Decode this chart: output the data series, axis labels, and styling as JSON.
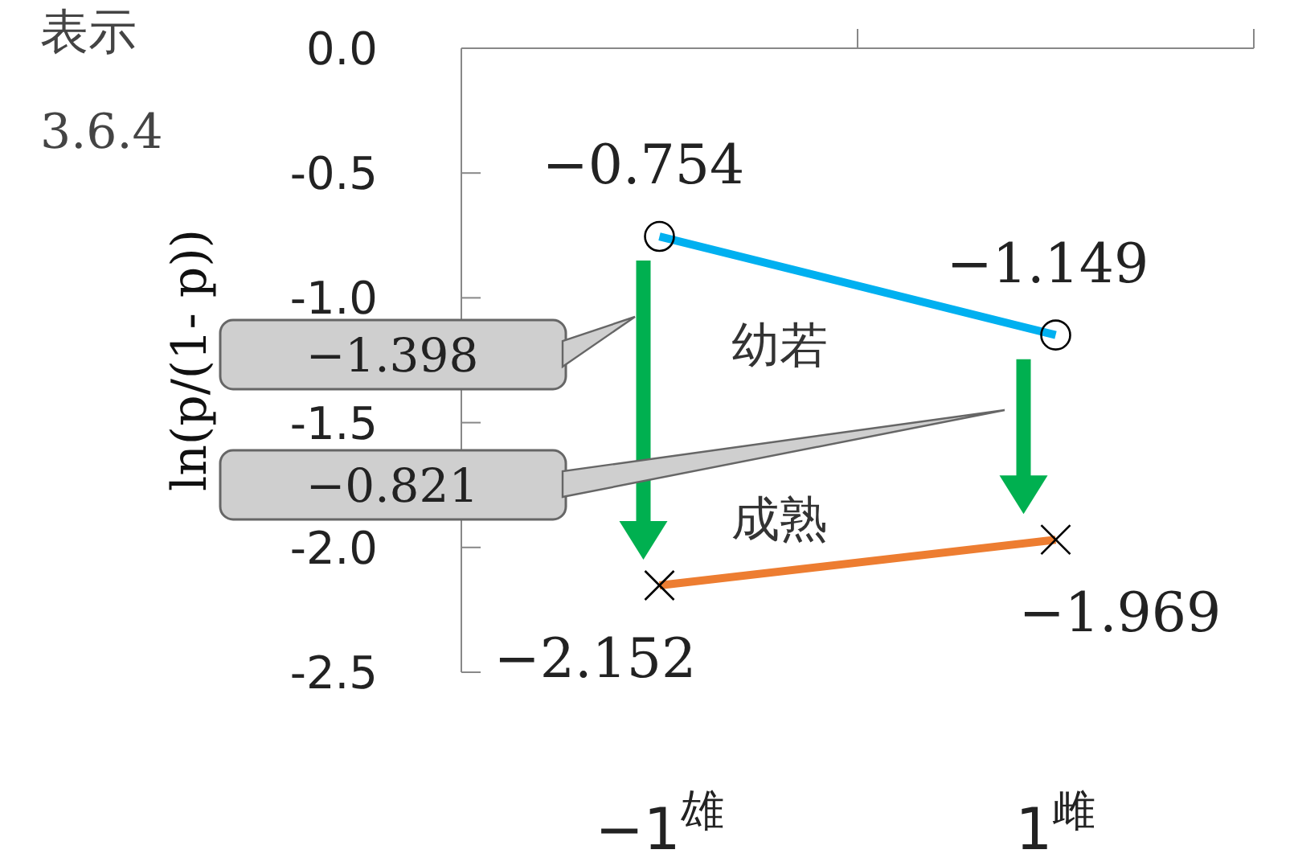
{
  "chart_data": {
    "type": "line",
    "ylabel": "ln(p/(1- p))",
    "categories": [
      "−1$^{雄}$",
      "1$^{雌}$"
    ],
    "series": [
      {
        "name": "幼若",
        "color": "#00b0f0",
        "values": [
          -0.754,
          -1.149
        ],
        "marker": "circle",
        "value_labels": [
          "−0.754",
          "−1.149"
        ]
      },
      {
        "name": "成熟",
        "color": "#ed7d31",
        "values": [
          -2.152,
          -1.969
        ],
        "marker": "cross",
        "value_labels": [
          "−2.152",
          "−1.969"
        ]
      }
    ],
    "ylim": [
      -2.5,
      0.0
    ],
    "yticks": [
      {
        "value": -2.5,
        "label": "-2.5"
      },
      {
        "value": -2.0,
        "label": "-2.0"
      },
      {
        "value": -1.5,
        "label": "-1.5"
      },
      {
        "value": -1.0,
        "label": "-1.0"
      },
      {
        "value": -0.5,
        "label": "-0.5"
      },
      {
        "value": 0,
        "label": "0.0"
      }
    ],
    "annotations": [
      "表示",
      "3.6.4",
      "−1.398",
      "−0.821"
    ]
  }
}
